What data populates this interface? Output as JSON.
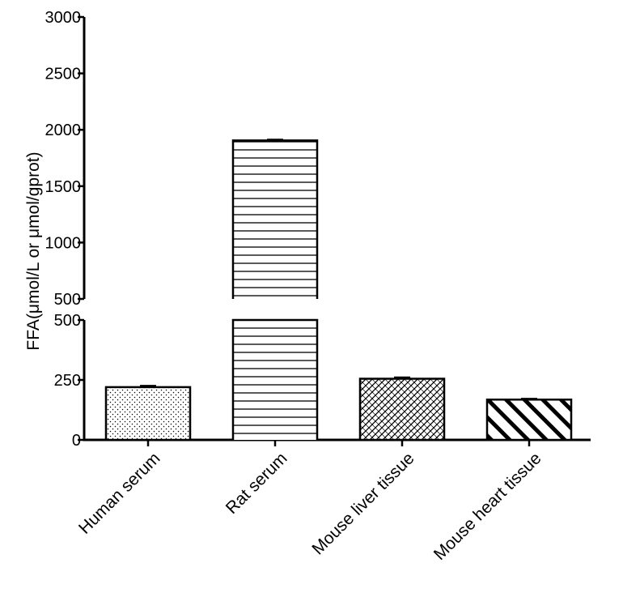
{
  "chart_data": {
    "type": "bar",
    "title": "",
    "ylabel": "FFA(μmol/L or μmol/gprot)",
    "xlabel": "",
    "categories": [
      "Human serum",
      "Rat serum",
      "Mouse liver tissue",
      "Mouse heart tissue"
    ],
    "values": [
      220,
      1905,
      255,
      168
    ],
    "errors": [
      6,
      8,
      6,
      4
    ],
    "patterns": [
      "dots",
      "horizontal-lines",
      "crosshatch",
      "diagonal-stripes"
    ],
    "axis_break": {
      "lower": {
        "range": [
          0,
          500
        ],
        "ticks": [
          "0",
          "250",
          "500"
        ]
      },
      "upper": {
        "range": [
          500,
          3000
        ],
        "ticks": [
          "500",
          "1000",
          "1500",
          "2000",
          "2500",
          "3000"
        ]
      }
    },
    "grid": false,
    "legend": "none"
  }
}
